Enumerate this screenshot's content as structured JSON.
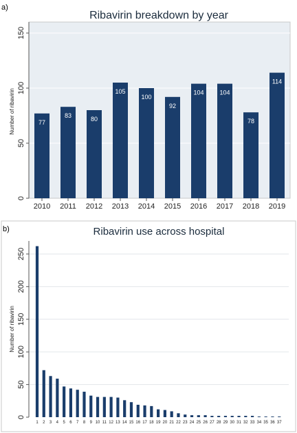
{
  "panels": {
    "a": "a)",
    "b": "b)"
  },
  "colors": {
    "bar": "#1a3d6b",
    "panel_a_bg": "#e9eef3",
    "panel_a_outer_bg": "#ffffff",
    "panel_b_bg": "#ffffff",
    "grid": "#e2e6ea",
    "border": "#c8c8c8"
  },
  "chart_data": [
    {
      "type": "bar",
      "title": "Ribavirin breakdown by year",
      "xlabel": "",
      "ylabel": "Number of ribavirin",
      "categories": [
        "2010",
        "2011",
        "2012",
        "2013",
        "2014",
        "2015",
        "2016",
        "2017",
        "2018",
        "2019"
      ],
      "values": [
        77,
        83,
        80,
        105,
        100,
        92,
        104,
        104,
        78,
        114
      ],
      "data_labels": [
        "77",
        "83",
        "80",
        "105",
        "100",
        "92",
        "104",
        "104",
        "78",
        "114"
      ],
      "yticks": [
        0,
        50,
        100,
        150
      ],
      "ylim": [
        0,
        160
      ],
      "grid": true
    },
    {
      "type": "bar",
      "title": "Ribavirin use across hospital",
      "xlabel": "",
      "ylabel": "Number of ribavirin",
      "categories": [
        "1",
        "2",
        "3",
        "4",
        "5",
        "6",
        "7",
        "8",
        "9",
        "10",
        "11",
        "12",
        "13",
        "14",
        "15",
        "16",
        "17",
        "18",
        "19",
        "20",
        "21",
        "22",
        "23",
        "24",
        "25",
        "26",
        "27",
        "28",
        "29",
        "30",
        "31",
        "32",
        "33",
        "34",
        "35",
        "36",
        "37"
      ],
      "values": [
        262,
        72,
        63,
        59,
        47,
        44,
        42,
        39,
        33,
        31,
        31,
        31,
        30,
        26,
        23,
        19,
        18,
        17,
        12,
        11,
        9,
        6,
        4,
        3,
        3,
        3,
        2,
        2,
        2,
        2,
        2,
        2,
        2,
        1,
        1,
        1,
        1
      ],
      "yticks": [
        0,
        50,
        100,
        150,
        200,
        250
      ],
      "ylim": [
        0,
        270
      ],
      "grid": true
    }
  ]
}
